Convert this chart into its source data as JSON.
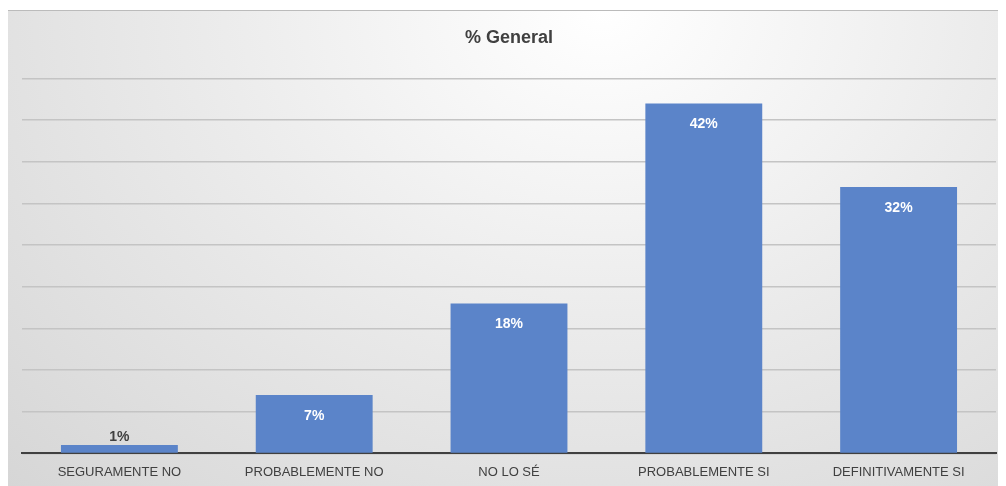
{
  "chart_data": {
    "type": "bar",
    "title": "% General",
    "categories": [
      "SEGURAMENTE NO",
      "PROBABLEMENTE NO",
      "NO LO SÉ",
      "PROBABLEMENTE SI",
      "DEFINITIVAMENTE SI"
    ],
    "values": [
      1,
      7,
      18,
      42,
      32
    ],
    "value_labels": [
      "1%",
      "7%",
      "18%",
      "42%",
      "32%"
    ],
    "color": "#5b84c9",
    "ylim": [
      0,
      45
    ],
    "yticks": [
      {
        "value": 0,
        "label": null
      },
      {
        "value": 5,
        "label": null
      },
      {
        "value": 10,
        "label": null
      },
      {
        "value": 15,
        "label": null
      },
      {
        "value": 20,
        "label": null
      },
      {
        "value": 25,
        "label": null
      },
      {
        "value": 30,
        "label": null
      },
      {
        "value": 35,
        "label": null
      },
      {
        "value": 40,
        "label": null
      },
      {
        "value": 45,
        "label": null
      }
    ],
    "grid": "y",
    "legend": false
  }
}
